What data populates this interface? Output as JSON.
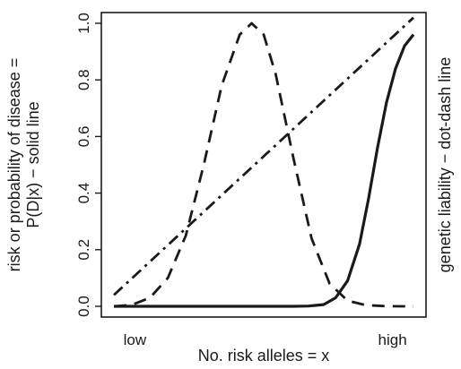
{
  "chart_data": {
    "type": "line",
    "title": "",
    "xlabel": "No. risk alleles = x",
    "ylabel_left": [
      "risk or probability of disease =",
      "P(D|x) − solid line"
    ],
    "ylabel_right": "genetic liability − dot-dash line",
    "xlim": [
      0,
      1
    ],
    "ylim": [
      0,
      1
    ],
    "x_tick_labels": [
      {
        "x": 0.07,
        "label": "low"
      },
      {
        "x": 0.93,
        "label": "high"
      }
    ],
    "y_ticks": [
      0.0,
      0.2,
      0.4,
      0.6,
      0.8,
      1.0
    ],
    "y_tick_labels": [
      "0.0",
      "0.2",
      "0.4",
      "0.6",
      "0.8",
      "1.0"
    ],
    "series": [
      {
        "style": "solid",
        "color": "#1a1a1a",
        "x": [
          0.0,
          0.1,
          0.2,
          0.3,
          0.4,
          0.5,
          0.6,
          0.65,
          0.7,
          0.74,
          0.78,
          0.82,
          0.85,
          0.88,
          0.91,
          0.94,
          0.97,
          1.0
        ],
        "y": [
          0.0,
          0.0,
          0.0,
          0.0,
          0.0,
          0.0,
          0.0,
          0.001,
          0.006,
          0.03,
          0.09,
          0.22,
          0.38,
          0.56,
          0.72,
          0.84,
          0.92,
          0.96
        ]
      },
      {
        "style": "dashed",
        "color": "#1a1a1a",
        "x": [
          0.0,
          0.06,
          0.12,
          0.18,
          0.24,
          0.3,
          0.36,
          0.42,
          0.46,
          0.5,
          0.54,
          0.6,
          0.66,
          0.72,
          0.78,
          0.84,
          0.9,
          0.96,
          1.0
        ],
        "y": [
          0.0,
          0.005,
          0.03,
          0.1,
          0.25,
          0.5,
          0.78,
          0.96,
          1.0,
          0.96,
          0.82,
          0.52,
          0.24,
          0.08,
          0.02,
          0.004,
          0.001,
          0.0,
          0.0
        ]
      },
      {
        "style": "dot-dash",
        "color": "#1a1a1a",
        "x": [
          0.0,
          1.0
        ],
        "y": [
          0.04,
          1.02
        ]
      }
    ]
  }
}
